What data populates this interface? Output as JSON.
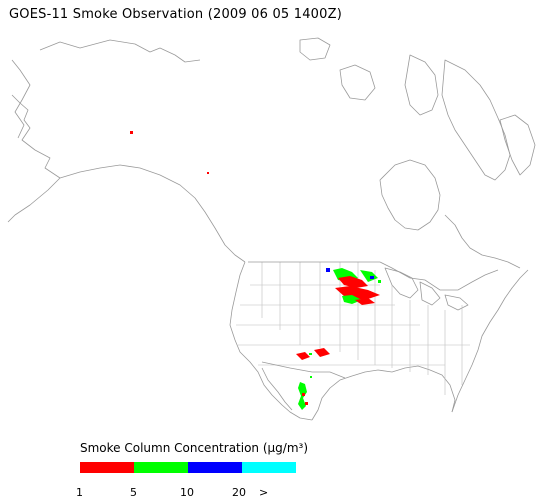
{
  "title": "GOES-11 Smoke Observation (2009 06 05  1400Z)",
  "legend": {
    "title": "Smoke Column Concentration (μg/m³)",
    "bins": [
      {
        "color": "#ff0000",
        "label": "1"
      },
      {
        "color": "#00ff00",
        "label": "5"
      },
      {
        "color": "#0000ff",
        "label": "10"
      },
      {
        "color": "#00ffff",
        "label": "20"
      }
    ],
    "end_label": ">"
  },
  "map": {
    "line_color": "#9a9a9a",
    "background": "#ffffff"
  }
}
